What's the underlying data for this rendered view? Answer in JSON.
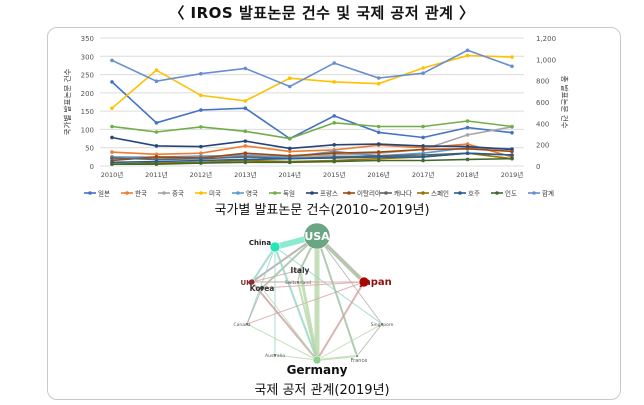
{
  "header": {
    "title": "〈 IROS 발표논문 건수 및 국제 공저 관계 〉"
  },
  "captions": {
    "chart": "국가별 발표논문 건수(2010~2019년)",
    "network": "국제 공저 관계(2019년)"
  },
  "chart_data": [
    {
      "type": "line",
      "x": [
        "2010년",
        "2011년",
        "2012년",
        "2013년",
        "2014년",
        "2015년",
        "2016년",
        "2017년",
        "2018년",
        "2019년"
      ],
      "ylabel": "국가별 발표논문 건수",
      "y2label": "총 발표논문 건수",
      "ylim": [
        0,
        350
      ],
      "y2lim": [
        0,
        1200
      ],
      "yticks": [
        0,
        50,
        100,
        150,
        200,
        250,
        300,
        350
      ],
      "y2ticks": [
        "0",
        "200",
        "400",
        "600",
        "800",
        "1,000",
        "1,200"
      ],
      "grid": true,
      "legend": "bottom",
      "series": [
        {
          "name": "일본",
          "color": "#4472c4",
          "axis": "left",
          "values": [
            230,
            118,
            153,
            158,
            75,
            137,
            92,
            78,
            105,
            91
          ]
        },
        {
          "name": "한국",
          "color": "#ed7d31",
          "axis": "left",
          "values": [
            38,
            32,
            35,
            55,
            40,
            44,
            57,
            50,
            60,
            25
          ]
        },
        {
          "name": "중국",
          "color": "#a5a5a5",
          "axis": "left",
          "values": [
            20,
            22,
            25,
            30,
            24,
            30,
            35,
            45,
            85,
            107
          ]
        },
        {
          "name": "미국",
          "color": "#ffc000",
          "axis": "left",
          "values": [
            158,
            262,
            193,
            178,
            240,
            230,
            225,
            268,
            302,
            298
          ]
        },
        {
          "name": "영국",
          "color": "#5b9bd5",
          "axis": "left",
          "values": [
            25,
            24,
            27,
            28,
            25,
            40,
            28,
            35,
            50,
            47
          ]
        },
        {
          "name": "독일",
          "color": "#70ad47",
          "axis": "left",
          "values": [
            108,
            93,
            107,
            95,
            75,
            118,
            108,
            108,
            123,
            108
          ]
        },
        {
          "name": "프랑스",
          "color": "#264478",
          "axis": "left",
          "values": [
            78,
            55,
            53,
            68,
            48,
            58,
            60,
            55,
            53,
            45
          ]
        },
        {
          "name": "이탈리아",
          "color": "#9e480e",
          "axis": "left",
          "values": [
            15,
            25,
            22,
            35,
            28,
            35,
            38,
            45,
            47,
            40
          ]
        },
        {
          "name": "캐나다",
          "color": "#636363",
          "axis": "left",
          "values": [
            22,
            18,
            20,
            25,
            20,
            25,
            28,
            30,
            35,
            30
          ]
        },
        {
          "name": "스페인",
          "color": "#997300",
          "axis": "left",
          "values": [
            5,
            8,
            10,
            15,
            12,
            15,
            20,
            25,
            35,
            20
          ]
        },
        {
          "name": "호주",
          "color": "#255e91",
          "axis": "left",
          "values": [
            10,
            12,
            15,
            18,
            20,
            22,
            25,
            25,
            35,
            30
          ]
        },
        {
          "name": "인도",
          "color": "#43682b",
          "axis": "left",
          "values": [
            5,
            5,
            8,
            10,
            10,
            12,
            15,
            15,
            18,
            20
          ]
        },
        {
          "name": "합계",
          "color": "#698ed0",
          "axis": "right",
          "values": [
            990,
            795,
            865,
            915,
            745,
            965,
            825,
            870,
            1085,
            935
          ]
        }
      ]
    }
  ],
  "network": {
    "nodes": [
      {
        "id": "USA",
        "label": "USA",
        "color": "#6aa584",
        "label_color": "#ffffff"
      },
      {
        "id": "China",
        "label": "China",
        "color": "#27e3b8",
        "label_color": "#222222"
      },
      {
        "id": "Japan",
        "label": "Japan",
        "color": "#c00000",
        "label_color": "#8b1010"
      },
      {
        "id": "UK",
        "label": "UK",
        "color": "#8b2e2e",
        "label_color": "#8b2e2e"
      },
      {
        "id": "Germany",
        "label": "Germany",
        "color": "#8fd08f",
        "label_color": "#111111"
      },
      {
        "id": "Italy",
        "label": "Italy",
        "color": "#888888",
        "label_color": "#333333"
      },
      {
        "id": "Korea",
        "label": "Korea",
        "color": "#555555",
        "label_color": "#333333"
      },
      {
        "id": "Switzerland",
        "label": "Switzerland",
        "color": "#888888",
        "label_color": "#555555"
      },
      {
        "id": "Canada",
        "label": "Canada",
        "color": "#888888",
        "label_color": "#555555"
      },
      {
        "id": "Singapore",
        "label": "Singapore",
        "color": "#888888",
        "label_color": "#555555"
      },
      {
        "id": "Australia",
        "label": "Australia",
        "color": "#888888",
        "label_color": "#555555"
      },
      {
        "id": "France",
        "label": "France",
        "color": "#888888",
        "label_color": "#555555"
      }
    ],
    "edges": [
      [
        "USA",
        "China",
        6,
        "#6fe5c4"
      ],
      [
        "USA",
        "Germany",
        5,
        "#b7d7a8"
      ],
      [
        "USA",
        "Japan",
        4,
        "#a5b89b"
      ],
      [
        "USA",
        "UK",
        2,
        "#b0a0a0"
      ],
      [
        "USA",
        "Italy",
        2,
        "#9fbf9f"
      ],
      [
        "USA",
        "Korea",
        2,
        "#9fbf9f"
      ],
      [
        "USA",
        "France",
        2,
        "#9fbf9f"
      ],
      [
        "USA",
        "Singapore",
        1,
        "#b0b0b0"
      ],
      [
        "China",
        "Germany",
        2,
        "#8fd6c4"
      ],
      [
        "China",
        "UK",
        2,
        "#8fd6c4"
      ],
      [
        "China",
        "Canada",
        1,
        "#8fd6c4"
      ],
      [
        "China",
        "Australia",
        1,
        "#8fd6c4"
      ],
      [
        "China",
        "Singapore",
        1,
        "#8fd6c4"
      ],
      [
        "Japan",
        "Germany",
        2,
        "#d7a0a0"
      ],
      [
        "Japan",
        "UK",
        1,
        "#d7a0a0"
      ],
      [
        "Japan",
        "Canada",
        1,
        "#d7a0a0"
      ],
      [
        "Japan",
        "Korea",
        1,
        "#d7a0a0"
      ],
      [
        "UK",
        "Germany",
        2,
        "#c9a0a0"
      ],
      [
        "UK",
        "Italy",
        1,
        "#c9a0a0"
      ],
      [
        "UK",
        "Switzerland",
        1,
        "#c9a0a0"
      ],
      [
        "Germany",
        "Italy",
        3,
        "#b7d7a8"
      ],
      [
        "Germany",
        "Switzerland",
        2,
        "#b7d7a8"
      ],
      [
        "Germany",
        "France",
        2,
        "#b7d7a8"
      ],
      [
        "Germany",
        "Korea",
        1,
        "#b7d7a8"
      ],
      [
        "Germany",
        "Canada",
        1,
        "#b7d7a8"
      ],
      [
        "Germany",
        "Singapore",
        1,
        "#b7d7a8"
      ],
      [
        "Germany",
        "Australia",
        1,
        "#b7d7a8"
      ],
      [
        "Italy",
        "Switzerland",
        1,
        "#aaaaaa"
      ],
      [
        "Korea",
        "Canada",
        1,
        "#aaaaaa"
      ],
      [
        "France",
        "Singapore",
        1,
        "#aaaaaa"
      ]
    ]
  }
}
